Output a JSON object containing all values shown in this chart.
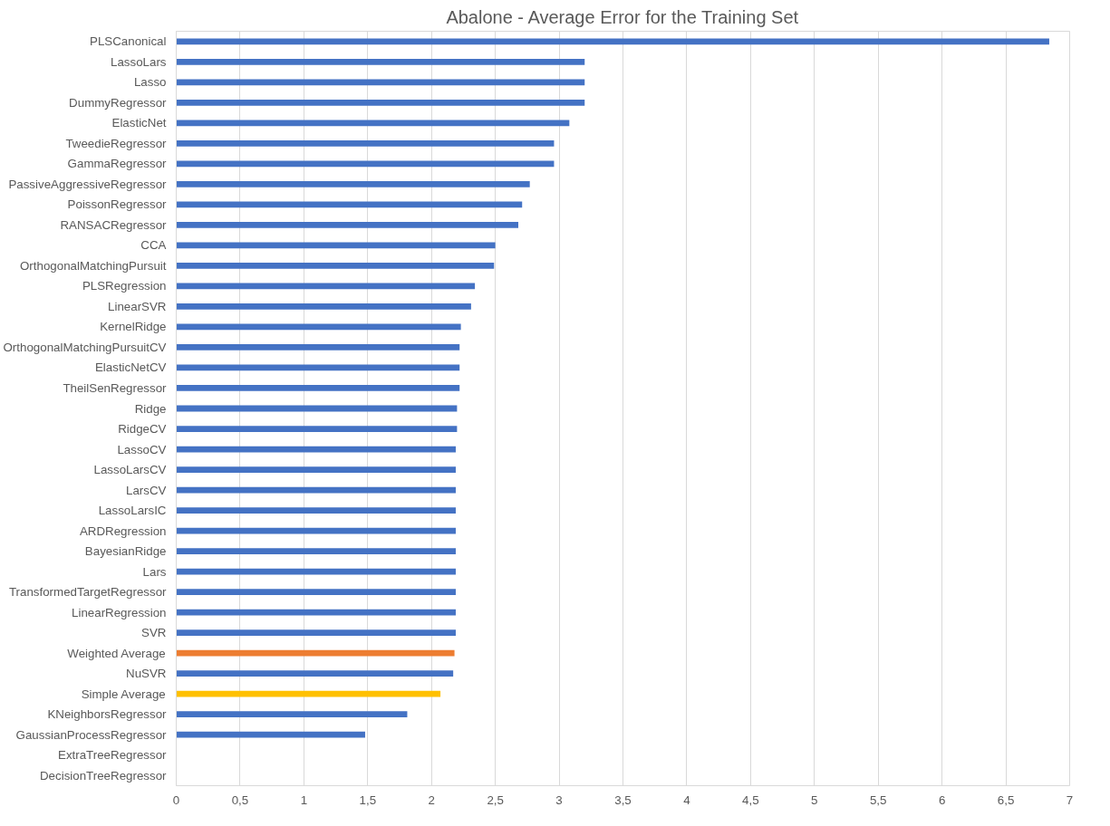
{
  "chart_data": {
    "type": "bar",
    "orientation": "horizontal",
    "title": "Abalone - Average Error for the Training Set",
    "categories": [
      "PLSCanonical",
      "LassoLars",
      "Lasso",
      "DummyRegressor",
      "ElasticNet",
      "TweedieRegressor",
      "GammaRegressor",
      "PassiveAggressiveRegressor",
      "PoissonRegressor",
      "RANSACRegressor",
      "CCA",
      "OrthogonalMatchingPursuit",
      "PLSRegression",
      "LinearSVR",
      "KernelRidge",
      "OrthogonalMatchingPursuitCV",
      "ElasticNetCV",
      "TheilSenRegressor",
      "Ridge",
      "RidgeCV",
      "LassoCV",
      "LassoLarsCV",
      "LarsCV",
      "LassoLarsIC",
      "ARDRegression",
      "BayesianRidge",
      "Lars",
      "TransformedTargetRegressor",
      "LinearRegression",
      "SVR",
      "Weighted Average",
      "NuSVR",
      "Simple Average",
      "KNeighborsRegressor",
      "GaussianProcessRegressor",
      "ExtraTreeRegressor",
      "DecisionTreeRegressor"
    ],
    "values": [
      6.84,
      3.2,
      3.2,
      3.2,
      3.08,
      2.96,
      2.96,
      2.77,
      2.71,
      2.68,
      2.5,
      2.49,
      2.34,
      2.31,
      2.23,
      2.22,
      2.22,
      2.22,
      2.2,
      2.2,
      2.19,
      2.19,
      2.19,
      2.19,
      2.19,
      2.19,
      2.19,
      2.19,
      2.19,
      2.19,
      2.18,
      2.17,
      2.07,
      1.81,
      1.48,
      0,
      0
    ],
    "colors": [
      "#4472c4",
      "#4472c4",
      "#4472c4",
      "#4472c4",
      "#4472c4",
      "#4472c4",
      "#4472c4",
      "#4472c4",
      "#4472c4",
      "#4472c4",
      "#4472c4",
      "#4472c4",
      "#4472c4",
      "#4472c4",
      "#4472c4",
      "#4472c4",
      "#4472c4",
      "#4472c4",
      "#4472c4",
      "#4472c4",
      "#4472c4",
      "#4472c4",
      "#4472c4",
      "#4472c4",
      "#4472c4",
      "#4472c4",
      "#4472c4",
      "#4472c4",
      "#4472c4",
      "#4472c4",
      "#ed7d31",
      "#4472c4",
      "#ffc000",
      "#4472c4",
      "#4472c4",
      "#4472c4",
      "#4472c4"
    ],
    "xlim": [
      0,
      7
    ],
    "xticks": [
      0,
      {
        "value": 0.5,
        "label": "0,5"
      },
      1,
      {
        "value": 1.5,
        "label": "1,5"
      },
      2,
      {
        "value": 2.5,
        "label": "2,5"
      },
      3,
      {
        "value": 3.5,
        "label": "3,5"
      },
      4,
      {
        "value": 4.5,
        "label": "4,5"
      },
      5,
      {
        "value": 5.5,
        "label": "5,5"
      },
      6,
      {
        "value": 6.5,
        "label": "6,5"
      },
      7
    ],
    "grid": "x"
  }
}
